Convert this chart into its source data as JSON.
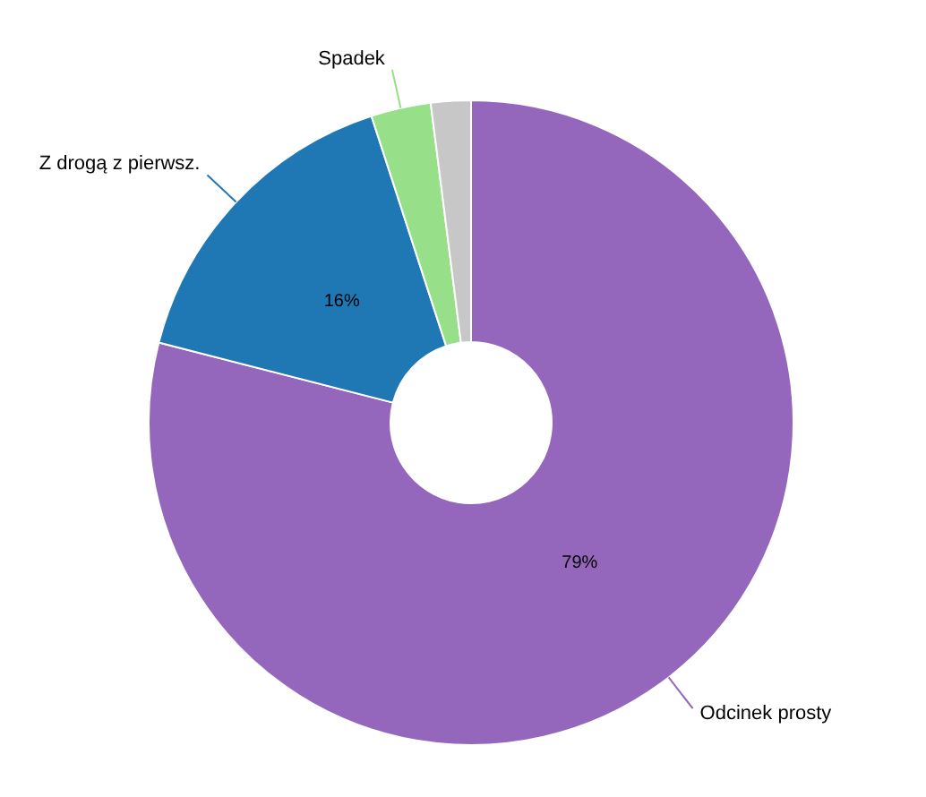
{
  "chart_data": {
    "type": "donut",
    "categories": [
      "Odcinek prosty",
      "Z drogą z pierwsz.",
      "Spadek",
      null
    ],
    "values": [
      79,
      16,
      3,
      2
    ],
    "colors": [
      "#9467bd",
      "#1f77b4",
      "#98df8a",
      "#c7c7c7"
    ],
    "value_labels": [
      "79%",
      "16%",
      null,
      null
    ]
  }
}
